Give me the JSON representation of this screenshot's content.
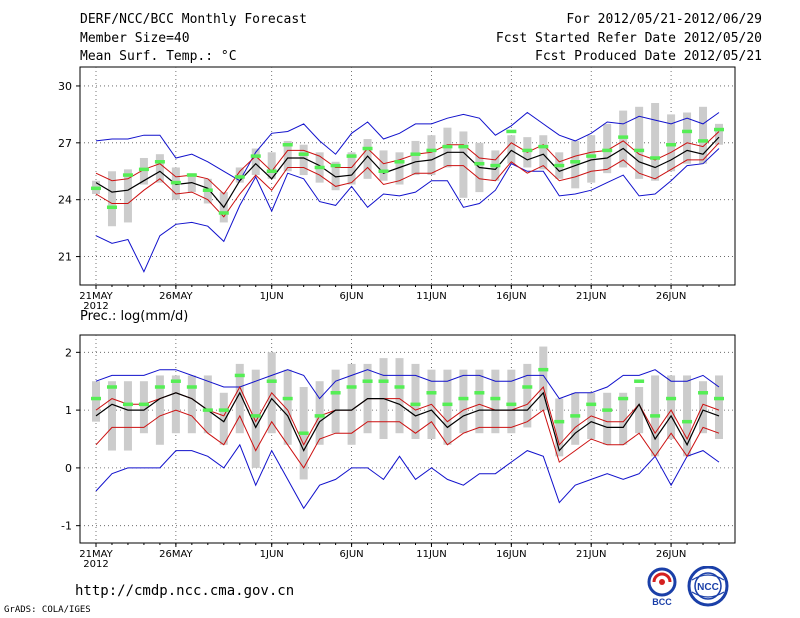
{
  "header": {
    "title": "DERF/NCC/BCC Monthly Forecast",
    "member_size": "Member Size=40",
    "variable": "Mean Surf. Temp.: °C",
    "period": "For 2012/05/21-2012/06/29",
    "fcst_started": "Fcst Started Refer Date 2012/05/20",
    "fcst_produced": "Fcst Produced Date 2012/05/21"
  },
  "footer": {
    "url": "http://cmdp.ncc.cma.gov.cn",
    "credit": "GrADS: COLA/IGES",
    "logo_bcc": "BCC",
    "logo_ncc": "NCC"
  },
  "colors": {
    "box": "#cccccc",
    "mean": "#55ee55",
    "median": "#000000",
    "quartile": "#cc1111",
    "extreme": "#1111cc",
    "grid": "#555555"
  },
  "chart_data": [
    {
      "type": "box",
      "title": "Mean Surf. Temp.: °C",
      "xlabel": "",
      "ylabel": "",
      "ylim": [
        19.5,
        31
      ],
      "yticks": [
        21,
        24,
        27,
        30
      ],
      "x_start_day": 1,
      "x_end_day": 40,
      "x_ticks": [
        {
          "day": 1,
          "label": "21MAY",
          "year": "2012"
        },
        {
          "day": 6,
          "label": "26MAY"
        },
        {
          "day": 12,
          "label": "1JUN"
        },
        {
          "day": 17,
          "label": "6JUN"
        },
        {
          "day": 22,
          "label": "11JUN"
        },
        {
          "day": 27,
          "label": "16JUN"
        },
        {
          "day": 32,
          "label": "21JUN"
        },
        {
          "day": 37,
          "label": "26JUN"
        }
      ],
      "series": [
        {
          "name": "max",
          "values": [
            27.1,
            27.2,
            27.2,
            27.4,
            27.4,
            26.2,
            26.4,
            26.0,
            25.5,
            25.0,
            26.5,
            27.5,
            27.6,
            28.0,
            27.1,
            26.4,
            27.5,
            28.1,
            27.2,
            27.5,
            28.0,
            28.0,
            28.3,
            28.5,
            28.3,
            27.4,
            27.9,
            28.6,
            28.0,
            27.4,
            27.1,
            27.5,
            28.1,
            28.0,
            28.4,
            28.2,
            28.0,
            28.3,
            28.0,
            28.6
          ]
        },
        {
          "name": "q3",
          "values": [
            25.4,
            25.0,
            25.1,
            25.6,
            25.9,
            25.2,
            25.3,
            25.1,
            24.3,
            25.5,
            26.3,
            25.5,
            26.6,
            26.6,
            26.3,
            25.7,
            25.7,
            26.7,
            25.9,
            26.1,
            26.4,
            26.5,
            26.9,
            26.9,
            26.2,
            26.1,
            27.0,
            26.5,
            26.9,
            26.0,
            26.3,
            26.5,
            26.6,
            27.1,
            26.4,
            26.1,
            26.5,
            27.0,
            26.8,
            27.6
          ]
        },
        {
          "name": "median",
          "values": [
            24.9,
            24.4,
            24.5,
            25.0,
            25.5,
            24.8,
            24.9,
            24.6,
            23.6,
            25.0,
            25.9,
            25.1,
            26.2,
            26.2,
            25.8,
            25.2,
            25.3,
            26.3,
            25.4,
            25.7,
            26.0,
            26.1,
            26.5,
            26.5,
            25.7,
            25.6,
            26.6,
            26.1,
            26.4,
            25.5,
            25.8,
            26.1,
            26.2,
            26.7,
            26.0,
            25.7,
            26.1,
            26.6,
            26.4,
            27.3
          ]
        },
        {
          "name": "q1",
          "values": [
            24.3,
            23.8,
            23.8,
            24.5,
            25.1,
            24.3,
            24.4,
            24.0,
            23.1,
            24.3,
            25.3,
            24.5,
            25.7,
            25.7,
            25.3,
            24.7,
            24.9,
            25.7,
            24.8,
            25.0,
            25.4,
            25.4,
            25.8,
            25.8,
            25.1,
            25.0,
            26.0,
            25.4,
            25.8,
            25.0,
            25.2,
            25.5,
            25.6,
            26.1,
            25.4,
            25.1,
            25.6,
            26.1,
            26.1,
            27.0
          ]
        },
        {
          "name": "min",
          "values": [
            22.1,
            21.7,
            21.9,
            20.2,
            22.1,
            22.7,
            22.8,
            22.6,
            21.8,
            23.7,
            25.2,
            23.4,
            25.4,
            25.1,
            23.9,
            23.7,
            24.7,
            23.6,
            24.3,
            24.2,
            24.4,
            25.0,
            25.0,
            23.6,
            23.8,
            24.5,
            25.9,
            25.5,
            25.5,
            24.2,
            24.3,
            24.5,
            24.9,
            25.3,
            24.2,
            24.3,
            25.0,
            25.8,
            25.9,
            26.7
          ]
        },
        {
          "name": "box_high",
          "values": [
            25.0,
            25.5,
            25.6,
            26.2,
            26.4,
            25.7,
            25.4,
            25.1,
            24.4,
            25.7,
            26.7,
            26.5,
            27.1,
            26.9,
            26.5,
            26.0,
            26.5,
            27.2,
            26.6,
            26.5,
            27.1,
            27.4,
            27.8,
            27.6,
            27.0,
            26.6,
            27.4,
            27.3,
            27.4,
            26.5,
            27.1,
            27.4,
            28.0,
            28.7,
            28.9,
            29.1,
            28.5,
            28.6,
            28.9,
            28.0
          ]
        },
        {
          "name": "box_low",
          "values": [
            24.3,
            22.6,
            22.8,
            24.8,
            24.9,
            24.0,
            24.4,
            23.8,
            22.8,
            24.9,
            25.3,
            25.1,
            25.5,
            25.3,
            24.9,
            24.5,
            24.8,
            25.1,
            25.0,
            24.8,
            25.3,
            25.3,
            25.7,
            24.1,
            24.4,
            25.0,
            25.9,
            25.7,
            25.6,
            25.1,
            24.6,
            24.9,
            25.4,
            25.7,
            25.1,
            25.0,
            25.5,
            25.9,
            25.9,
            26.9
          ]
        },
        {
          "name": "mean",
          "values": [
            24.6,
            23.6,
            25.3,
            25.6,
            26.0,
            24.9,
            25.3,
            24.5,
            23.3,
            25.2,
            26.3,
            25.5,
            26.9,
            26.4,
            25.7,
            25.8,
            26.3,
            26.7,
            25.5,
            26.0,
            26.4,
            26.6,
            26.8,
            26.8,
            25.9,
            25.8,
            27.6,
            26.6,
            26.8,
            25.8,
            26.0,
            26.3,
            26.6,
            27.3,
            26.6,
            26.2,
            26.9,
            27.6,
            27.1,
            27.7
          ]
        }
      ]
    },
    {
      "type": "box",
      "title": "Prec.: log(mm/d)",
      "xlabel": "",
      "ylabel": "",
      "ylim": [
        -1.3,
        2.3
      ],
      "yticks": [
        -1,
        0,
        1,
        2
      ],
      "x_start_day": 1,
      "x_end_day": 40,
      "x_ticks": [
        {
          "day": 1,
          "label": "21MAY",
          "year": "2012"
        },
        {
          "day": 6,
          "label": "26MAY"
        },
        {
          "day": 12,
          "label": "1JUN"
        },
        {
          "day": 17,
          "label": "6JUN"
        },
        {
          "day": 22,
          "label": "11JUN"
        },
        {
          "day": 27,
          "label": "16JUN"
        },
        {
          "day": 32,
          "label": "21JUN"
        },
        {
          "day": 37,
          "label": "26JUN"
        }
      ],
      "series": [
        {
          "name": "max",
          "values": [
            1.5,
            1.6,
            1.6,
            1.6,
            1.7,
            1.7,
            1.6,
            1.5,
            1.4,
            1.4,
            1.5,
            1.6,
            1.7,
            1.6,
            1.2,
            1.5,
            1.6,
            1.7,
            1.6,
            1.6,
            1.6,
            1.5,
            1.5,
            1.6,
            1.6,
            1.5,
            1.5,
            1.6,
            1.6,
            1.2,
            1.3,
            1.3,
            1.4,
            1.6,
            1.6,
            1.7,
            1.5,
            1.5,
            1.6,
            1.4
          ]
        },
        {
          "name": "q3",
          "values": [
            1.0,
            1.2,
            1.1,
            1.1,
            1.2,
            1.3,
            1.2,
            1.0,
            0.9,
            1.4,
            0.8,
            1.3,
            1.0,
            0.4,
            0.9,
            1.0,
            1.0,
            1.2,
            1.2,
            1.2,
            1.0,
            1.1,
            0.8,
            1.0,
            1.1,
            1.0,
            1.0,
            1.1,
            1.4,
            0.4,
            0.7,
            0.9,
            0.8,
            0.8,
            1.1,
            0.6,
            1.0,
            0.5,
            1.1,
            1.0
          ]
        },
        {
          "name": "median",
          "values": [
            0.9,
            1.1,
            1.0,
            1.0,
            1.2,
            1.3,
            1.2,
            1.0,
            0.8,
            1.3,
            0.7,
            1.2,
            0.9,
            0.3,
            0.8,
            1.0,
            1.0,
            1.2,
            1.2,
            1.1,
            0.9,
            1.0,
            0.7,
            0.9,
            1.0,
            1.0,
            1.0,
            1.0,
            1.3,
            0.3,
            0.6,
            0.8,
            0.7,
            0.7,
            1.1,
            0.5,
            0.9,
            0.4,
            1.0,
            0.9
          ]
        },
        {
          "name": "q1",
          "values": [
            0.4,
            0.7,
            0.7,
            0.7,
            0.9,
            1.0,
            0.9,
            0.6,
            0.4,
            0.9,
            0.3,
            0.8,
            0.4,
            0.0,
            0.5,
            0.6,
            0.6,
            0.8,
            0.8,
            0.8,
            0.6,
            0.8,
            0.4,
            0.6,
            0.7,
            0.7,
            0.7,
            0.8,
            1.0,
            0.1,
            0.3,
            0.5,
            0.4,
            0.4,
            0.6,
            0.2,
            0.6,
            0.2,
            0.7,
            0.6
          ]
        },
        {
          "name": "min",
          "values": [
            -0.4,
            -0.1,
            0.0,
            0.0,
            0.0,
            0.3,
            0.3,
            0.2,
            0.0,
            0.4,
            -0.3,
            0.3,
            -0.2,
            -0.7,
            -0.3,
            -0.2,
            0.0,
            0.0,
            -0.2,
            0.2,
            -0.2,
            0.0,
            -0.2,
            -0.3,
            -0.1,
            -0.1,
            0.1,
            0.3,
            0.2,
            -0.6,
            -0.3,
            -0.2,
            -0.1,
            -0.2,
            -0.1,
            0.2,
            -0.3,
            0.2,
            0.3,
            0.1
          ]
        },
        {
          "name": "box_high",
          "values": [
            1.5,
            1.5,
            1.5,
            1.5,
            1.6,
            1.6,
            1.6,
            1.6,
            1.3,
            1.8,
            1.7,
            2.0,
            1.7,
            1.4,
            1.5,
            1.7,
            1.8,
            1.8,
            1.9,
            1.9,
            1.8,
            1.7,
            1.7,
            1.7,
            1.7,
            1.7,
            1.7,
            1.8,
            2.1,
            1.2,
            1.3,
            1.3,
            1.3,
            1.3,
            1.4,
            1.6,
            1.6,
            1.6,
            1.5,
            1.6
          ]
        },
        {
          "name": "box_low",
          "values": [
            0.8,
            0.3,
            0.3,
            0.6,
            0.4,
            0.6,
            0.6,
            0.6,
            0.4,
            0.6,
            0.0,
            0.6,
            0.4,
            -0.2,
            0.4,
            0.6,
            0.4,
            0.6,
            0.5,
            0.6,
            0.5,
            0.5,
            0.4,
            0.6,
            0.6,
            0.6,
            0.6,
            0.7,
            1.0,
            0.2,
            0.4,
            0.5,
            0.4,
            0.4,
            0.6,
            0.2,
            0.5,
            0.2,
            0.6,
            0.5
          ]
        },
        {
          "name": "mean",
          "values": [
            1.2,
            1.4,
            1.1,
            1.1,
            1.4,
            1.5,
            1.4,
            1.0,
            1.0,
            1.6,
            0.9,
            1.5,
            1.2,
            0.6,
            0.9,
            1.3,
            1.4,
            1.5,
            1.5,
            1.4,
            1.1,
            1.3,
            1.1,
            1.2,
            1.3,
            1.2,
            1.1,
            1.4,
            1.7,
            0.8,
            0.9,
            1.1,
            1.0,
            1.2,
            1.5,
            0.9,
            1.2,
            0.8,
            1.3,
            1.2
          ]
        }
      ]
    }
  ]
}
